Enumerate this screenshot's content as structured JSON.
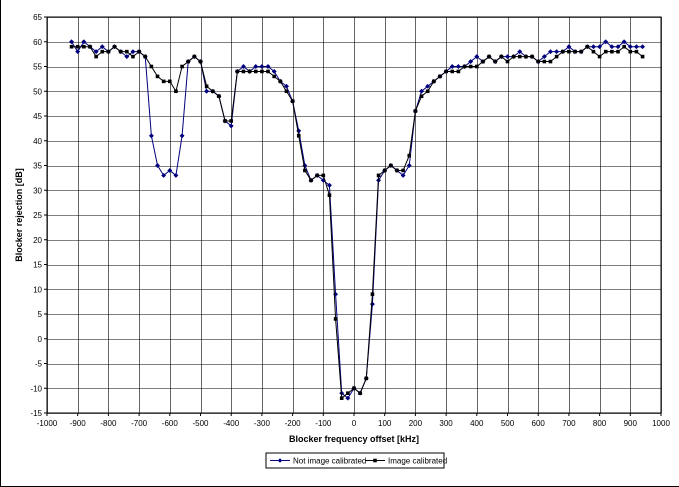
{
  "chart_data": {
    "type": "line",
    "title": "",
    "xlabel": "Blocker frequency offset [kHz]",
    "ylabel": "Blocker rejection [dB]",
    "xlim": [
      -1000,
      1000
    ],
    "ylim": [
      -15,
      65
    ],
    "x_ticks": [
      -1000,
      -900,
      -800,
      -700,
      -600,
      -500,
      -400,
      -300,
      -200,
      -100,
      0,
      100,
      200,
      300,
      400,
      500,
      600,
      700,
      800,
      900,
      1000
    ],
    "y_ticks": [
      -15,
      -10,
      -5,
      0,
      5,
      10,
      15,
      20,
      25,
      30,
      35,
      40,
      45,
      50,
      55,
      60,
      65
    ],
    "grid": true,
    "legend_position": "bottom-center",
    "series": [
      {
        "name": "Not image calibrated",
        "marker": "diamond",
        "color": "#00007f",
        "points": [
          [
            -920,
            60
          ],
          [
            -900,
            58
          ],
          [
            -880,
            60
          ],
          [
            -860,
            59
          ],
          [
            -840,
            58
          ],
          [
            -820,
            59
          ],
          [
            -800,
            58
          ],
          [
            -780,
            59
          ],
          [
            -760,
            58
          ],
          [
            -740,
            57
          ],
          [
            -720,
            58
          ],
          [
            -700,
            58
          ],
          [
            -680,
            57
          ],
          [
            -660,
            41
          ],
          [
            -640,
            35
          ],
          [
            -620,
            33
          ],
          [
            -600,
            34
          ],
          [
            -580,
            33
          ],
          [
            -560,
            41
          ],
          [
            -540,
            56
          ],
          [
            -520,
            57
          ],
          [
            -500,
            56
          ],
          [
            -480,
            50
          ],
          [
            -460,
            50
          ],
          [
            -440,
            49
          ],
          [
            -420,
            44
          ],
          [
            -400,
            43
          ],
          [
            -380,
            54
          ],
          [
            -360,
            55
          ],
          [
            -340,
            54
          ],
          [
            -320,
            55
          ],
          [
            -300,
            55
          ],
          [
            -280,
            55
          ],
          [
            -260,
            54
          ],
          [
            -240,
            52
          ],
          [
            -220,
            51
          ],
          [
            -200,
            48
          ],
          [
            -180,
            42
          ],
          [
            -160,
            35
          ],
          [
            -140,
            32
          ],
          [
            -120,
            33
          ],
          [
            -100,
            32
          ],
          [
            -80,
            31
          ],
          [
            -60,
            9
          ],
          [
            -40,
            -11
          ],
          [
            -20,
            -12
          ],
          [
            0,
            -10
          ],
          [
            20,
            -11
          ],
          [
            40,
            -8
          ],
          [
            60,
            7
          ],
          [
            80,
            32
          ],
          [
            100,
            34
          ],
          [
            120,
            35
          ],
          [
            140,
            34
          ],
          [
            160,
            33
          ],
          [
            180,
            35
          ],
          [
            200,
            46
          ],
          [
            220,
            50
          ],
          [
            240,
            51
          ],
          [
            260,
            52
          ],
          [
            280,
            53
          ],
          [
            300,
            54
          ],
          [
            320,
            55
          ],
          [
            340,
            55
          ],
          [
            360,
            55
          ],
          [
            380,
            56
          ],
          [
            400,
            57
          ],
          [
            420,
            56
          ],
          [
            440,
            57
          ],
          [
            460,
            56
          ],
          [
            480,
            57
          ],
          [
            500,
            57
          ],
          [
            520,
            57
          ],
          [
            540,
            58
          ],
          [
            560,
            57
          ],
          [
            580,
            57
          ],
          [
            600,
            56
          ],
          [
            620,
            57
          ],
          [
            640,
            58
          ],
          [
            660,
            58
          ],
          [
            680,
            58
          ],
          [
            700,
            59
          ],
          [
            720,
            58
          ],
          [
            740,
            58
          ],
          [
            760,
            59
          ],
          [
            780,
            59
          ],
          [
            800,
            59
          ],
          [
            820,
            60
          ],
          [
            840,
            59
          ],
          [
            860,
            59
          ],
          [
            880,
            60
          ],
          [
            900,
            59
          ],
          [
            920,
            59
          ],
          [
            940,
            59
          ]
        ]
      },
      {
        "name": "Image calibrated",
        "marker": "square",
        "color": "#000000",
        "points": [
          [
            -920,
            59
          ],
          [
            -900,
            59
          ],
          [
            -880,
            59
          ],
          [
            -860,
            59
          ],
          [
            -840,
            57
          ],
          [
            -820,
            58
          ],
          [
            -800,
            58
          ],
          [
            -780,
            59
          ],
          [
            -760,
            58
          ],
          [
            -740,
            58
          ],
          [
            -720,
            57
          ],
          [
            -700,
            58
          ],
          [
            -680,
            57
          ],
          [
            -660,
            55
          ],
          [
            -640,
            53
          ],
          [
            -620,
            52
          ],
          [
            -600,
            52
          ],
          [
            -580,
            50
          ],
          [
            -560,
            55
          ],
          [
            -540,
            56
          ],
          [
            -520,
            57
          ],
          [
            -500,
            56
          ],
          [
            -480,
            51
          ],
          [
            -460,
            50
          ],
          [
            -440,
            49
          ],
          [
            -420,
            44
          ],
          [
            -400,
            44
          ],
          [
            -380,
            54
          ],
          [
            -360,
            54
          ],
          [
            -340,
            54
          ],
          [
            -320,
            54
          ],
          [
            -300,
            54
          ],
          [
            -280,
            54
          ],
          [
            -260,
            53
          ],
          [
            -240,
            52
          ],
          [
            -220,
            50
          ],
          [
            -200,
            48
          ],
          [
            -180,
            41
          ],
          [
            -160,
            34
          ],
          [
            -140,
            32
          ],
          [
            -120,
            33
          ],
          [
            -100,
            33
          ],
          [
            -80,
            29
          ],
          [
            -60,
            4
          ],
          [
            -40,
            -12
          ],
          [
            -20,
            -11
          ],
          [
            0,
            -10
          ],
          [
            20,
            -11
          ],
          [
            40,
            -8
          ],
          [
            60,
            9
          ],
          [
            80,
            33
          ],
          [
            100,
            34
          ],
          [
            120,
            35
          ],
          [
            140,
            34
          ],
          [
            160,
            34
          ],
          [
            180,
            37
          ],
          [
            200,
            46
          ],
          [
            220,
            49
          ],
          [
            240,
            50
          ],
          [
            260,
            52
          ],
          [
            280,
            53
          ],
          [
            300,
            54
          ],
          [
            320,
            54
          ],
          [
            340,
            54
          ],
          [
            360,
            55
          ],
          [
            380,
            55
          ],
          [
            400,
            55
          ],
          [
            420,
            56
          ],
          [
            440,
            57
          ],
          [
            460,
            56
          ],
          [
            480,
            57
          ],
          [
            500,
            56
          ],
          [
            520,
            57
          ],
          [
            540,
            57
          ],
          [
            560,
            57
          ],
          [
            580,
            57
          ],
          [
            600,
            56
          ],
          [
            620,
            56
          ],
          [
            640,
            56
          ],
          [
            660,
            57
          ],
          [
            680,
            58
          ],
          [
            700,
            58
          ],
          [
            720,
            58
          ],
          [
            740,
            58
          ],
          [
            760,
            59
          ],
          [
            780,
            58
          ],
          [
            800,
            57
          ],
          [
            820,
            58
          ],
          [
            840,
            58
          ],
          [
            860,
            58
          ],
          [
            880,
            59
          ],
          [
            900,
            58
          ],
          [
            920,
            58
          ],
          [
            940,
            57
          ]
        ]
      }
    ]
  }
}
